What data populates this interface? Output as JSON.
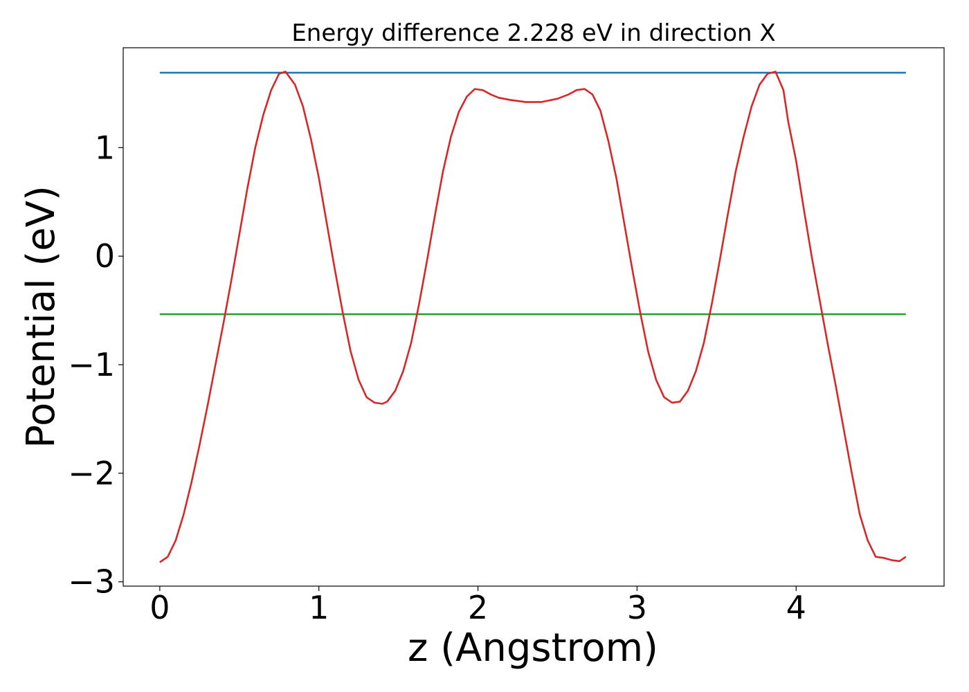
{
  "chart_data": {
    "type": "line",
    "title": "Energy difference 2.228 eV in direction X",
    "xlabel": "z (Angstrom)",
    "ylabel": "Potential (eV)",
    "xlim": [
      -0.23,
      4.93
    ],
    "ylim": [
      -3.04,
      1.92
    ],
    "xticks": [
      0,
      1,
      2,
      3,
      4
    ],
    "yticks": [
      -3,
      -2,
      -1,
      0,
      1
    ],
    "xtick_labels": [
      "0",
      "1",
      "2",
      "3",
      "4"
    ],
    "ytick_labels": [
      "−3",
      "−2",
      "−1",
      "0",
      "1"
    ],
    "grid": false,
    "series": [
      {
        "color": "#d62728",
        "x": [
          0.0,
          0.05,
          0.1,
          0.15,
          0.2,
          0.25,
          0.3,
          0.35,
          0.4,
          0.45,
          0.5,
          0.55,
          0.6,
          0.65,
          0.7,
          0.75,
          0.79,
          0.85,
          0.9,
          0.95,
          1.0,
          1.05,
          1.1,
          1.15,
          1.2,
          1.25,
          1.3,
          1.35,
          1.4,
          1.43,
          1.48,
          1.53,
          1.58,
          1.63,
          1.68,
          1.73,
          1.78,
          1.83,
          1.88,
          1.93,
          1.98,
          2.03,
          2.08,
          2.13,
          2.2,
          2.3,
          2.4,
          2.5,
          2.57,
          2.62,
          2.67,
          2.72,
          2.77,
          2.82,
          2.87,
          2.92,
          2.97,
          3.02,
          3.07,
          3.12,
          3.17,
          3.22,
          3.27,
          3.32,
          3.37,
          3.42,
          3.47,
          3.52,
          3.57,
          3.62,
          3.67,
          3.72,
          3.77,
          3.82,
          3.87,
          3.92,
          3.95,
          4.0,
          4.05,
          4.1,
          4.15,
          4.2,
          4.25,
          4.3,
          4.35,
          4.4,
          4.45,
          4.5,
          4.55,
          4.6,
          4.65,
          4.69
        ],
        "y": [
          -2.82,
          -2.77,
          -2.62,
          -2.38,
          -2.08,
          -1.74,
          -1.38,
          -1.0,
          -0.62,
          -0.22,
          0.2,
          0.62,
          1.0,
          1.3,
          1.53,
          1.68,
          1.7,
          1.58,
          1.38,
          1.08,
          0.72,
          0.3,
          -0.12,
          -0.52,
          -0.88,
          -1.14,
          -1.3,
          -1.35,
          -1.36,
          -1.34,
          -1.24,
          -1.06,
          -0.8,
          -0.44,
          -0.04,
          0.38,
          0.78,
          1.1,
          1.33,
          1.47,
          1.54,
          1.53,
          1.49,
          1.46,
          1.44,
          1.42,
          1.42,
          1.45,
          1.49,
          1.53,
          1.54,
          1.49,
          1.34,
          1.06,
          0.72,
          0.3,
          -0.12,
          -0.52,
          -0.88,
          -1.14,
          -1.3,
          -1.35,
          -1.34,
          -1.24,
          -1.06,
          -0.8,
          -0.44,
          -0.04,
          0.38,
          0.78,
          1.1,
          1.38,
          1.58,
          1.68,
          1.7,
          1.53,
          1.24,
          0.88,
          0.42,
          -0.02,
          -0.42,
          -0.82,
          -1.2,
          -1.6,
          -2.0,
          -2.38,
          -2.62,
          -2.77,
          -2.78,
          -2.8,
          -2.81,
          -2.77
        ]
      },
      {
        "color": "#1f77b4",
        "x": [
          0.0,
          4.69
        ],
        "y": [
          1.69,
          1.69
        ]
      },
      {
        "color": "#2ca02c",
        "x": [
          0.0,
          4.69
        ],
        "y": [
          -0.535,
          -0.535
        ]
      }
    ]
  }
}
